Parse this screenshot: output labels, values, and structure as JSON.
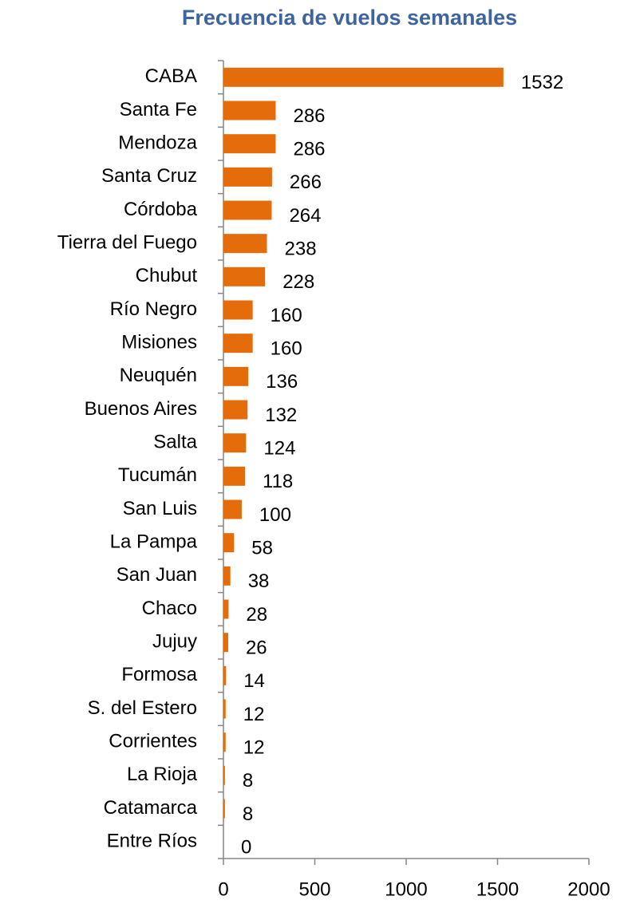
{
  "chart_data": {
    "type": "bar",
    "orientation": "horizontal",
    "title": "Frecuencia de vuelos semanales",
    "categories": [
      "CABA",
      "Santa Fe",
      "Mendoza",
      "Santa Cruz",
      "Córdoba",
      "Tierra del Fuego",
      "Chubut",
      "Río Negro",
      "Misiones",
      "Neuquén",
      "Buenos Aires",
      "Salta",
      "Tucumán",
      "San Luis",
      "La Pampa",
      "San Juan",
      "Chaco",
      "Jujuy",
      "Formosa",
      "S. del Estero",
      "Corrientes",
      "La Rioja",
      "Catamarca",
      "Entre Ríos"
    ],
    "values": [
      1532,
      286,
      286,
      266,
      264,
      238,
      228,
      160,
      160,
      136,
      132,
      124,
      118,
      100,
      58,
      38,
      28,
      26,
      14,
      12,
      12,
      8,
      8,
      0
    ],
    "color": "#e46c0a",
    "xlim": [
      0,
      2000
    ],
    "xticks": [
      0,
      500,
      1000,
      1500,
      2000
    ],
    "grid": false
  }
}
